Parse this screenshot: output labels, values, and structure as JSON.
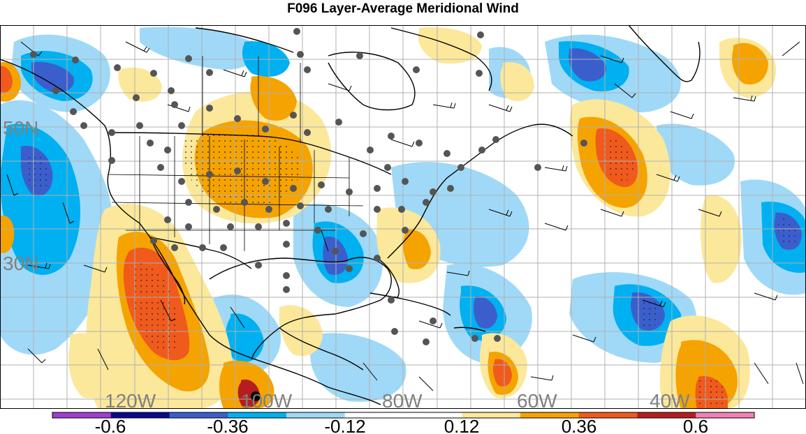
{
  "title": "F096 Layer-Average Meridional Wind",
  "map": {
    "lat_labels": [
      "50N",
      "30N"
    ],
    "lon_labels": [
      "120W",
      "100W",
      "80W",
      "60W",
      "40W"
    ]
  },
  "colorbar": {
    "tick_labels": [
      "-0.6",
      "-0.36",
      "-0.12",
      "0.12",
      "0.36",
      "0.6"
    ],
    "colors": [
      "#9f3fcf",
      "#0a0a8c",
      "#3a5fcd",
      "#00b0f0",
      "#9fd9f7",
      "#ffffff",
      "#ffffff",
      "#fbe89a",
      "#f5a300",
      "#f05a1c",
      "#b41e1e",
      "#f080b4"
    ]
  },
  "colors": {
    "land_outline": "#000000",
    "grid": "#b0b0b0",
    "station_dot": "#555555",
    "wind_barb": "#000000"
  }
}
